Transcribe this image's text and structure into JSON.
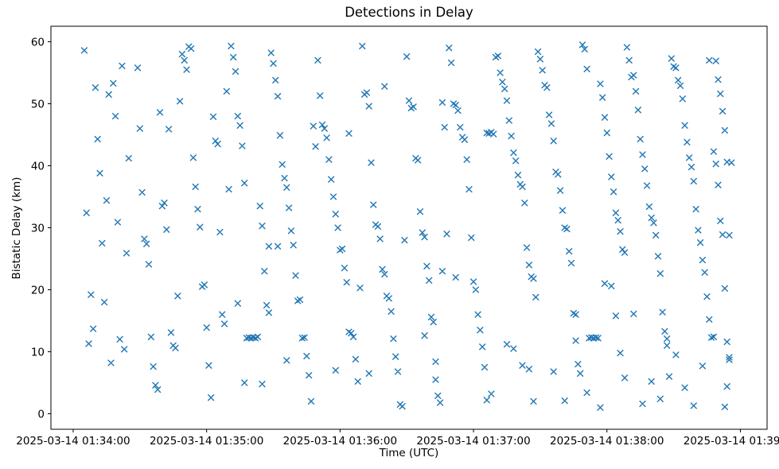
{
  "chart_data": {
    "type": "scatter",
    "title": "Detections in Delay",
    "xlabel": "Time (UTC)",
    "ylabel": "Bistatic Delay (km)",
    "marker": "x",
    "marker_color": "#1f77b4",
    "grid": false,
    "legend": "none",
    "x_axis": {
      "tick_seconds": [
        0,
        60,
        120,
        180,
        240,
        300
      ],
      "tick_labels": [
        "2025-03-14 01:34:00",
        "2025-03-14 01:35:00",
        "2025-03-14 01:36:00",
        "2025-03-14 01:37:00",
        "2025-03-14 01:38:00",
        "2025-03-14 01:39:00"
      ],
      "units": "seconds after 2025-03-14 01:34:00 UTC",
      "range_seconds": [
        -10,
        312
      ]
    },
    "y_axis": {
      "ticks": [
        0,
        10,
        20,
        30,
        40,
        50,
        60
      ],
      "range": [
        -2.5,
        62.5
      ]
    },
    "points_format": "[seconds_after_01:34:00_UTC, bistatic_delay_km]",
    "points": [
      [
        5,
        58.6
      ],
      [
        6,
        32.4
      ],
      [
        7,
        11.3
      ],
      [
        8,
        19.2
      ],
      [
        9,
        13.7
      ],
      [
        10,
        52.6
      ],
      [
        11,
        44.3
      ],
      [
        12,
        38.8
      ],
      [
        13,
        27.5
      ],
      [
        14,
        18.0
      ],
      [
        15,
        34.4
      ],
      [
        16,
        51.5
      ],
      [
        17,
        8.2
      ],
      [
        18,
        53.3
      ],
      [
        19,
        48.0
      ],
      [
        20,
        30.9
      ],
      [
        21,
        12.0
      ],
      [
        22,
        56.1
      ],
      [
        23,
        10.4
      ],
      [
        24,
        25.9
      ],
      [
        25,
        41.2
      ],
      [
        29,
        55.8
      ],
      [
        30,
        46.0
      ],
      [
        31,
        35.7
      ],
      [
        32,
        28.2
      ],
      [
        33,
        27.4
      ],
      [
        34,
        24.1
      ],
      [
        35,
        12.4
      ],
      [
        36,
        7.6
      ],
      [
        37,
        4.6
      ],
      [
        38,
        3.9
      ],
      [
        39,
        48.6
      ],
      [
        40,
        33.5
      ],
      [
        41,
        34.0
      ],
      [
        42,
        29.7
      ],
      [
        43,
        45.9
      ],
      [
        44,
        13.1
      ],
      [
        45,
        11.0
      ],
      [
        46,
        10.6
      ],
      [
        47,
        19.0
      ],
      [
        48,
        50.4
      ],
      [
        49,
        58.0
      ],
      [
        50,
        57.0
      ],
      [
        51,
        55.5
      ],
      [
        52,
        59.2
      ],
      [
        53,
        58.9
      ],
      [
        54,
        41.3
      ],
      [
        55,
        36.6
      ],
      [
        56,
        33.0
      ],
      [
        57,
        30.1
      ],
      [
        58,
        20.5
      ],
      [
        59,
        20.8
      ],
      [
        60,
        13.9
      ],
      [
        61,
        7.8
      ],
      [
        62,
        2.6
      ],
      [
        63,
        47.9
      ],
      [
        64,
        44.0
      ],
      [
        65,
        43.5
      ],
      [
        66,
        29.3
      ],
      [
        67,
        16.0
      ],
      [
        68,
        14.5
      ],
      [
        69,
        52.0
      ],
      [
        70,
        36.2
      ],
      [
        71,
        59.3
      ],
      [
        72,
        57.5
      ],
      [
        73,
        55.2
      ],
      [
        74,
        48.0
      ],
      [
        74,
        17.8
      ],
      [
        75,
        46.5
      ],
      [
        76,
        43.2
      ],
      [
        77,
        37.2
      ],
      [
        77,
        5.0
      ],
      [
        78,
        12.2
      ],
      [
        79,
        12.3
      ],
      [
        80,
        12.2
      ],
      [
        81,
        12.3
      ],
      [
        82,
        12.2
      ],
      [
        83,
        12.4
      ],
      [
        84,
        33.5
      ],
      [
        85,
        30.3
      ],
      [
        85,
        4.8
      ],
      [
        86,
        23.0
      ],
      [
        87,
        17.5
      ],
      [
        88,
        16.3
      ],
      [
        88,
        27.0
      ],
      [
        89,
        58.2
      ],
      [
        90,
        56.5
      ],
      [
        91,
        53.8
      ],
      [
        92,
        51.2
      ],
      [
        92,
        27.0
      ],
      [
        93,
        44.9
      ],
      [
        94,
        40.2
      ],
      [
        95,
        38.0
      ],
      [
        96,
        36.5
      ],
      [
        96,
        8.6
      ],
      [
        97,
        33.2
      ],
      [
        98,
        29.5
      ],
      [
        99,
        27.2
      ],
      [
        100,
        22.3
      ],
      [
        101,
        18.2
      ],
      [
        102,
        18.4
      ],
      [
        103,
        12.2
      ],
      [
        104,
        12.3
      ],
      [
        105,
        9.3
      ],
      [
        106,
        6.2
      ],
      [
        107,
        2.0
      ],
      [
        108,
        46.4
      ],
      [
        109,
        43.1
      ],
      [
        110,
        57.0
      ],
      [
        111,
        51.3
      ],
      [
        112,
        46.6
      ],
      [
        113,
        46.0
      ],
      [
        114,
        44.5
      ],
      [
        115,
        41.0
      ],
      [
        116,
        37.8
      ],
      [
        117,
        35.0
      ],
      [
        118,
        32.2
      ],
      [
        118,
        7.0
      ],
      [
        119,
        30.0
      ],
      [
        120,
        26.4
      ],
      [
        121,
        26.6
      ],
      [
        122,
        23.5
      ],
      [
        123,
        21.2
      ],
      [
        124,
        13.2
      ],
      [
        124,
        45.2
      ],
      [
        125,
        13.0
      ],
      [
        126,
        12.4
      ],
      [
        127,
        8.8
      ],
      [
        128,
        5.2
      ],
      [
        129,
        20.3
      ],
      [
        130,
        59.3
      ],
      [
        131,
        51.5
      ],
      [
        132,
        51.8
      ],
      [
        133,
        49.6
      ],
      [
        133,
        6.5
      ],
      [
        134,
        40.5
      ],
      [
        135,
        33.7
      ],
      [
        136,
        30.5
      ],
      [
        137,
        30.2
      ],
      [
        138,
        28.2
      ],
      [
        139,
        23.3
      ],
      [
        140,
        22.5
      ],
      [
        140,
        52.8
      ],
      [
        141,
        19.0
      ],
      [
        142,
        18.6
      ],
      [
        143,
        16.5
      ],
      [
        144,
        12.1
      ],
      [
        145,
        9.2
      ],
      [
        146,
        6.8
      ],
      [
        147,
        1.5
      ],
      [
        148,
        1.2
      ],
      [
        149,
        28.0
      ],
      [
        150,
        57.6
      ],
      [
        151,
        50.5
      ],
      [
        152,
        49.3
      ],
      [
        153,
        49.5
      ],
      [
        154,
        41.2
      ],
      [
        155,
        40.9
      ],
      [
        156,
        32.6
      ],
      [
        157,
        29.2
      ],
      [
        158,
        28.5
      ],
      [
        158,
        12.6
      ],
      [
        159,
        23.8
      ],
      [
        160,
        21.5
      ],
      [
        161,
        15.6
      ],
      [
        162,
        14.8
      ],
      [
        163,
        5.5
      ],
      [
        163,
        8.4
      ],
      [
        164,
        2.9
      ],
      [
        165,
        1.8
      ],
      [
        166,
        50.2
      ],
      [
        166,
        23.0
      ],
      [
        167,
        46.2
      ],
      [
        168,
        29.0
      ],
      [
        169,
        59.0
      ],
      [
        170,
        56.6
      ],
      [
        171,
        50.0
      ],
      [
        172,
        49.8
      ],
      [
        172,
        22.0
      ],
      [
        173,
        48.9
      ],
      [
        174,
        46.2
      ],
      [
        175,
        44.6
      ],
      [
        176,
        44.2
      ],
      [
        177,
        41.0
      ],
      [
        178,
        36.2
      ],
      [
        179,
        28.4
      ],
      [
        180,
        21.3
      ],
      [
        181,
        20.0
      ],
      [
        182,
        16.0
      ],
      [
        183,
        13.5
      ],
      [
        184,
        10.8
      ],
      [
        185,
        7.5
      ],
      [
        186,
        2.2
      ],
      [
        186,
        45.3
      ],
      [
        187,
        45.2
      ],
      [
        188,
        45.4
      ],
      [
        188,
        3.2
      ],
      [
        189,
        45.1
      ],
      [
        190,
        57.5
      ],
      [
        191,
        57.7
      ],
      [
        192,
        55.0
      ],
      [
        193,
        53.5
      ],
      [
        194,
        52.4
      ],
      [
        195,
        50.5
      ],
      [
        195,
        11.2
      ],
      [
        196,
        47.3
      ],
      [
        197,
        44.8
      ],
      [
        198,
        42.1
      ],
      [
        198,
        10.5
      ],
      [
        199,
        40.8
      ],
      [
        200,
        38.5
      ],
      [
        201,
        37.0
      ],
      [
        202,
        36.6
      ],
      [
        202,
        7.8
      ],
      [
        203,
        34.0
      ],
      [
        204,
        26.8
      ],
      [
        205,
        24.0
      ],
      [
        205,
        7.2
      ],
      [
        206,
        22.1
      ],
      [
        207,
        21.8
      ],
      [
        207,
        2.0
      ],
      [
        208,
        18.8
      ],
      [
        209,
        58.4
      ],
      [
        210,
        57.2
      ],
      [
        211,
        55.4
      ],
      [
        212,
        53.0
      ],
      [
        213,
        52.6
      ],
      [
        214,
        48.2
      ],
      [
        215,
        46.8
      ],
      [
        216,
        44.0
      ],
      [
        216,
        6.8
      ],
      [
        217,
        39.0
      ],
      [
        218,
        38.6
      ],
      [
        219,
        36.0
      ],
      [
        220,
        32.8
      ],
      [
        221,
        30.0
      ],
      [
        221,
        2.1
      ],
      [
        222,
        29.8
      ],
      [
        223,
        26.2
      ],
      [
        224,
        24.3
      ],
      [
        225,
        16.2
      ],
      [
        226,
        11.8
      ],
      [
        226,
        16.0
      ],
      [
        227,
        8.0
      ],
      [
        228,
        6.5
      ],
      [
        229,
        59.5
      ],
      [
        230,
        58.8
      ],
      [
        231,
        55.6
      ],
      [
        231,
        3.4
      ],
      [
        232,
        12.2
      ],
      [
        233,
        12.3
      ],
      [
        234,
        12.2
      ],
      [
        235,
        12.3
      ],
      [
        236,
        12.2
      ],
      [
        237,
        53.2
      ],
      [
        237,
        1.0
      ],
      [
        238,
        51.0
      ],
      [
        239,
        47.8
      ],
      [
        239,
        21.0
      ],
      [
        240,
        45.3
      ],
      [
        241,
        41.5
      ],
      [
        242,
        38.2
      ],
      [
        242,
        20.6
      ],
      [
        243,
        35.8
      ],
      [
        244,
        32.4
      ],
      [
        244,
        15.8
      ],
      [
        245,
        31.2
      ],
      [
        246,
        29.4
      ],
      [
        246,
        9.8
      ],
      [
        247,
        26.5
      ],
      [
        248,
        26.0
      ],
      [
        248,
        5.8
      ],
      [
        249,
        59.1
      ],
      [
        250,
        57.0
      ],
      [
        251,
        54.3
      ],
      [
        252,
        54.6
      ],
      [
        252,
        16.1
      ],
      [
        253,
        52.0
      ],
      [
        254,
        49.0
      ],
      [
        255,
        44.3
      ],
      [
        256,
        41.8
      ],
      [
        256,
        1.6
      ],
      [
        257,
        39.5
      ],
      [
        258,
        36.8
      ],
      [
        259,
        33.4
      ],
      [
        260,
        31.6
      ],
      [
        260,
        5.2
      ],
      [
        261,
        30.8
      ],
      [
        262,
        28.8
      ],
      [
        263,
        25.4
      ],
      [
        264,
        22.6
      ],
      [
        264,
        2.4
      ],
      [
        265,
        16.4
      ],
      [
        266,
        13.3
      ],
      [
        267,
        11.0
      ],
      [
        267,
        12.1
      ],
      [
        268,
        6.0
      ],
      [
        269,
        57.3
      ],
      [
        270,
        56.0
      ],
      [
        271,
        55.8
      ],
      [
        271,
        9.5
      ],
      [
        272,
        53.8
      ],
      [
        273,
        52.9
      ],
      [
        274,
        50.8
      ],
      [
        275,
        46.5
      ],
      [
        275,
        4.2
      ],
      [
        276,
        43.8
      ],
      [
        277,
        41.3
      ],
      [
        278,
        39.8
      ],
      [
        279,
        37.5
      ],
      [
        279,
        1.3
      ],
      [
        280,
        33.0
      ],
      [
        281,
        29.6
      ],
      [
        282,
        27.6
      ],
      [
        283,
        24.8
      ],
      [
        283,
        7.7
      ],
      [
        284,
        22.8
      ],
      [
        285,
        18.9
      ],
      [
        286,
        15.2
      ],
      [
        286,
        57.0
      ],
      [
        287,
        12.3
      ],
      [
        288,
        12.4
      ],
      [
        288,
        42.3
      ],
      [
        289,
        56.9
      ],
      [
        289,
        40.3
      ],
      [
        290,
        53.9
      ],
      [
        290,
        36.9
      ],
      [
        291,
        51.6
      ],
      [
        291,
        31.1
      ],
      [
        292,
        48.8
      ],
      [
        292,
        28.9
      ],
      [
        293,
        45.7
      ],
      [
        293,
        20.2
      ],
      [
        293,
        1.1
      ],
      [
        294,
        40.6
      ],
      [
        294,
        11.6
      ],
      [
        294,
        4.4
      ],
      [
        295,
        9.1
      ],
      [
        295,
        8.7
      ],
      [
        295,
        28.8
      ],
      [
        296,
        40.5
      ]
    ]
  }
}
